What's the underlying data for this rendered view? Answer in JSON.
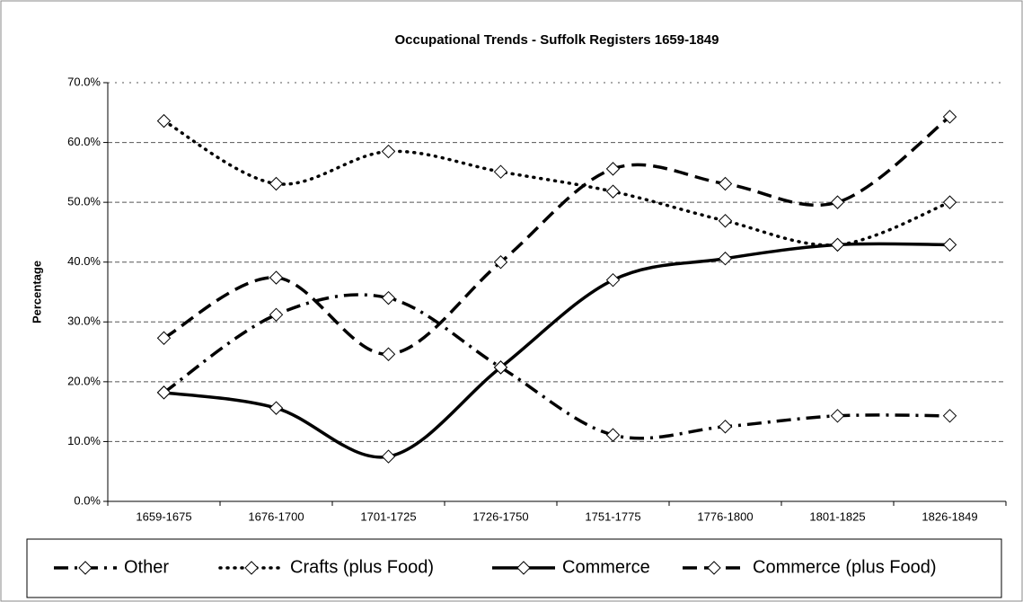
{
  "chart_data": {
    "type": "line",
    "title": "Occupational Trends - Suffolk Registers 1659-1849",
    "y_label": "Percentage",
    "categories": [
      "1659-1675",
      "1676-1700",
      "1701-1725",
      "1726-1750",
      "1751-1775",
      "1776-1800",
      "1801-1825",
      "1826-1849"
    ],
    "series": [
      {
        "name": "Other",
        "color": "#000000",
        "values": [
          18.2,
          31.2,
          34.0,
          22.4,
          11.1,
          12.5,
          14.3,
          14.3
        ]
      },
      {
        "name": "Crafts (plus Food)",
        "color": "#000000",
        "values": [
          63.6,
          53.1,
          58.5,
          55.1,
          51.8,
          46.9,
          42.9,
          50.0
        ]
      },
      {
        "name": "Commerce",
        "color": "#000000",
        "values": [
          18.2,
          15.6,
          7.5,
          22.4,
          37.0,
          40.6,
          42.9,
          42.9
        ]
      },
      {
        "name": "Commerce (plus Food)",
        "color": "#000000",
        "values": [
          27.3,
          37.4,
          24.6,
          40.0,
          55.6,
          53.1,
          50.0,
          64.3
        ]
      }
    ],
    "ylim": [
      0,
      70
    ],
    "yticks": [
      {
        "value": 0,
        "label": "0.0%"
      },
      {
        "value": 10,
        "label": "10.0%"
      },
      {
        "value": 20,
        "label": "20.0%"
      },
      {
        "value": 30,
        "label": "30.0%"
      },
      {
        "value": 40,
        "label": "40.0%"
      },
      {
        "value": 50,
        "label": "50.0%"
      },
      {
        "value": 60,
        "label": "60.0%"
      },
      {
        "value": 70,
        "label": "70.0%"
      }
    ],
    "grid": true,
    "legend": "bottom"
  }
}
